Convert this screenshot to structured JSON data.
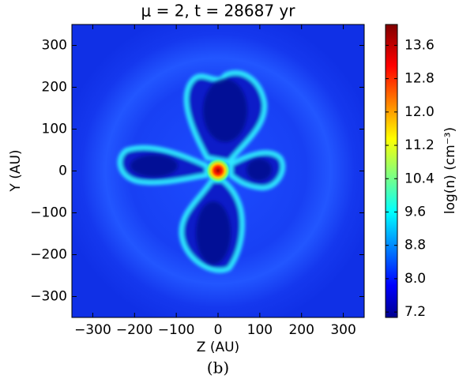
{
  "chart_data": {
    "type": "image",
    "title": "μ = 2, t = 28687 yr",
    "xlabel": "Z (AU)",
    "ylabel": "Y (AU)",
    "caption": "(b)",
    "xlim": [
      -350,
      350
    ],
    "ylim": [
      -350,
      350
    ],
    "xticks": [
      {
        "value": -300,
        "label": "−300"
      },
      {
        "value": -200,
        "label": "−200"
      },
      {
        "value": -100,
        "label": "−100"
      },
      0,
      100,
      200,
      300
    ],
    "yticks": [
      {
        "value": -300,
        "label": "−300"
      },
      {
        "value": -200,
        "label": "−200"
      },
      {
        "value": -100,
        "label": "−100"
      },
      0,
      100,
      200,
      300
    ],
    "colorbar": {
      "label": "log(n) (cm⁻³)",
      "lim": [
        7.07,
        14.1
      ],
      "colormap": "jet",
      "ticks": [
        7.2,
        {
          "value": 8,
          "label": "8.0"
        },
        8.8,
        9.6,
        10.4,
        11.2,
        {
          "value": 12,
          "label": "12.0"
        },
        12.8,
        13.6
      ]
    }
  }
}
